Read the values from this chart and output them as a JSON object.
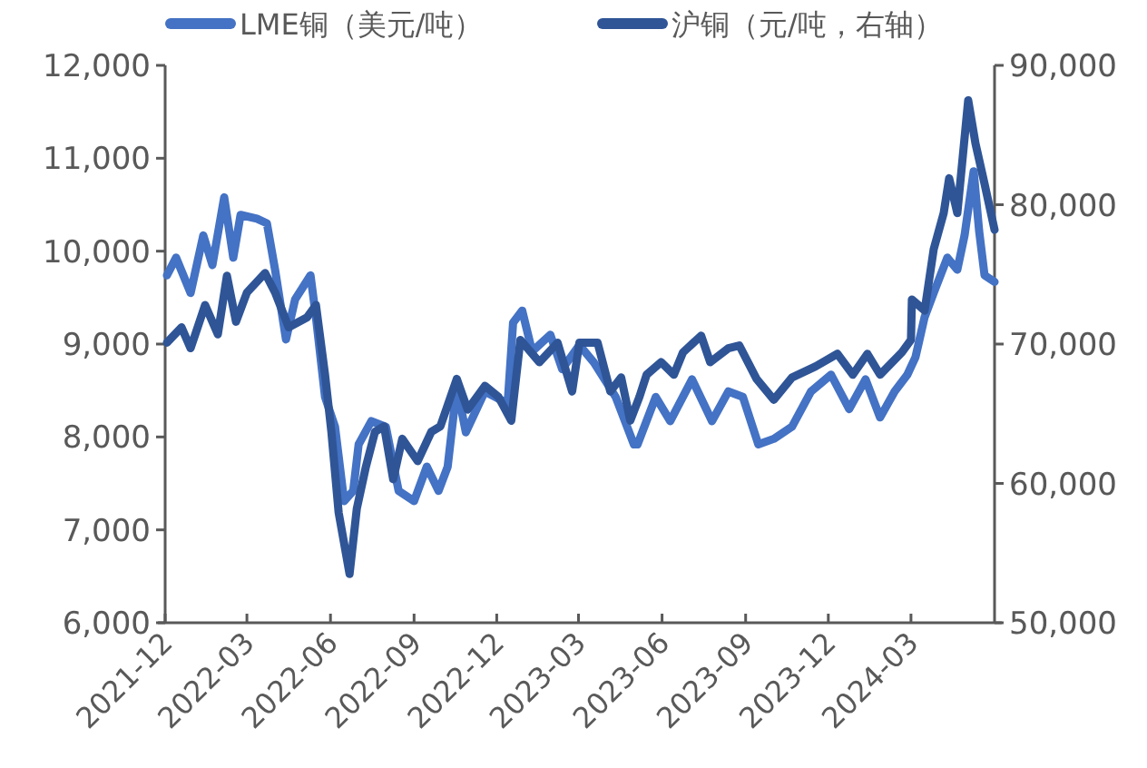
{
  "chart_data": {
    "type": "line",
    "legend": "top",
    "grid": false,
    "line_style": "solid",
    "marker": "none",
    "xlim": [
      "2021-12-01",
      "2024-06-01"
    ],
    "xticks": [
      "2021-12",
      "2022-03",
      "2022-06",
      "2022-09",
      "2022-12",
      "2023-03",
      "2023-06",
      "2023-09",
      "2023-12",
      "2024-03"
    ],
    "ylim": [
      6000,
      12000
    ],
    "yticks": [
      {
        "value": 6000,
        "label": "6,000"
      },
      {
        "value": 7000,
        "label": "7,000"
      },
      {
        "value": 8000,
        "label": "8,000"
      },
      {
        "value": 9000,
        "label": "9,000"
      },
      {
        "value": 10000,
        "label": "10,000"
      },
      {
        "value": 11000,
        "label": "11,000"
      },
      {
        "value": 12000,
        "label": "12,000"
      }
    ],
    "y2lim": [
      50000,
      90000
    ],
    "y2ticks": [
      {
        "value": 50000,
        "label": "50,000"
      },
      {
        "value": 60000,
        "label": "60,000"
      },
      {
        "value": 70000,
        "label": "70,000"
      },
      {
        "value": 80000,
        "label": "80,000"
      },
      {
        "value": 90000,
        "label": "90,000"
      }
    ],
    "series": [
      {
        "name": "LME铜（美元/吨）",
        "color": "#4472c4",
        "x": [
          "2021-12-03",
          "2021-12-13",
          "2021-12-29",
          "2022-01-12",
          "2022-01-22",
          "2022-02-04",
          "2022-02-14",
          "2022-02-22",
          "2022-03-12",
          "2022-03-23",
          "2022-04-01",
          "2022-04-13",
          "2022-04-23",
          "2022-05-10",
          "2022-05-16",
          "2022-05-26",
          "2022-06-06",
          "2022-06-16",
          "2022-06-26",
          "2022-07-02",
          "2022-07-16",
          "2022-08-01",
          "2022-08-15",
          "2022-09-01",
          "2022-09-15",
          "2022-09-28",
          "2022-10-08",
          "2022-10-18",
          "2022-10-28",
          "2022-11-18",
          "2022-12-13",
          "2022-12-19",
          "2022-12-29",
          "2023-01-09",
          "2023-01-29",
          "2023-02-11",
          "2023-03-02",
          "2023-03-18",
          "2023-04-11",
          "2023-05-01",
          "2023-05-05",
          "2023-05-25",
          "2023-06-10",
          "2023-07-04",
          "2023-07-26",
          "2023-08-13",
          "2023-08-29",
          "2023-09-15",
          "2023-10-02",
          "2023-10-22",
          "2023-11-12",
          "2023-12-04",
          "2023-12-24",
          "2024-01-11",
          "2024-01-27",
          "2024-02-12",
          "2024-02-26",
          "2024-03-06",
          "2024-03-16",
          "2024-03-26",
          "2024-04-10",
          "2024-04-21",
          "2024-04-29",
          "2024-05-09",
          "2024-05-15",
          "2024-05-21",
          "2024-06-01"
        ],
        "values": [
          9740,
          9930,
          9550,
          10170,
          9850,
          10580,
          9930,
          10390,
          10350,
          10300,
          9800,
          9050,
          9480,
          9740,
          9290,
          8430,
          8110,
          7310,
          7420,
          7920,
          8170,
          8110,
          7420,
          7310,
          7680,
          7420,
          7680,
          8540,
          8050,
          8490,
          8360,
          9230,
          9360,
          8920,
          9100,
          8730,
          8990,
          8800,
          8430,
          7920,
          7920,
          8430,
          8170,
          8620,
          8170,
          8490,
          8430,
          7920,
          7980,
          8110,
          8490,
          8670,
          8300,
          8620,
          8210,
          8490,
          8670,
          8860,
          9290,
          9550,
          9930,
          9800,
          10170,
          10860,
          10220,
          9740,
          9670
        ]
      },
      {
        "name": "沪铜（元/吨，右轴）",
        "color": "#2f5597",
        "axis": "y2",
        "x": [
          "2021-12-03",
          "2021-12-19",
          "2021-12-29",
          "2022-01-14",
          "2022-01-28",
          "2022-02-07",
          "2022-02-17",
          "2022-03-01",
          "2022-03-21",
          "2022-04-01",
          "2022-04-16",
          "2022-05-06",
          "2022-05-16",
          "2022-05-26",
          "2022-06-02",
          "2022-06-10",
          "2022-06-22",
          "2022-06-30",
          "2022-07-10",
          "2022-07-20",
          "2022-07-30",
          "2022-08-09",
          "2022-08-19",
          "2022-09-05",
          "2022-09-20",
          "2022-09-30",
          "2022-10-18",
          "2022-10-30",
          "2022-11-18",
          "2022-12-03",
          "2022-12-17",
          "2022-12-27",
          "2023-01-17",
          "2023-02-06",
          "2023-02-22",
          "2023-03-02",
          "2023-03-22",
          "2023-04-05",
          "2023-04-17",
          "2023-04-27",
          "2023-05-07",
          "2023-05-15",
          "2023-05-31",
          "2023-06-14",
          "2023-06-24",
          "2023-07-14",
          "2023-07-24",
          "2023-08-13",
          "2023-08-25",
          "2023-09-13",
          "2023-10-02",
          "2023-10-22",
          "2023-11-17",
          "2023-12-11",
          "2023-12-28",
          "2024-01-13",
          "2024-01-27",
          "2024-02-20",
          "2024-03-01",
          "2024-03-02",
          "2024-03-16",
          "2024-03-26",
          "2024-04-06",
          "2024-04-12",
          "2024-04-21",
          "2024-05-03",
          "2024-05-11",
          "2024-05-21",
          "2024-06-01"
        ],
        "values": [
          70100,
          71200,
          69700,
          72800,
          70700,
          74900,
          71600,
          73700,
          75100,
          73700,
          71200,
          71900,
          72800,
          67800,
          63700,
          57900,
          53500,
          58200,
          61200,
          63700,
          64100,
          60300,
          63200,
          61600,
          63700,
          64100,
          67500,
          65300,
          67000,
          66200,
          64500,
          70300,
          68700,
          70100,
          66600,
          70100,
          70100,
          66600,
          67600,
          64500,
          66200,
          67800,
          68700,
          67800,
          69400,
          70600,
          68700,
          69700,
          69900,
          67500,
          66000,
          67600,
          68400,
          69300,
          67800,
          69300,
          67800,
          69400,
          70300,
          73200,
          72400,
          76800,
          79400,
          81900,
          79400,
          87500,
          84400,
          81500,
          78200
        ]
      }
    ]
  }
}
